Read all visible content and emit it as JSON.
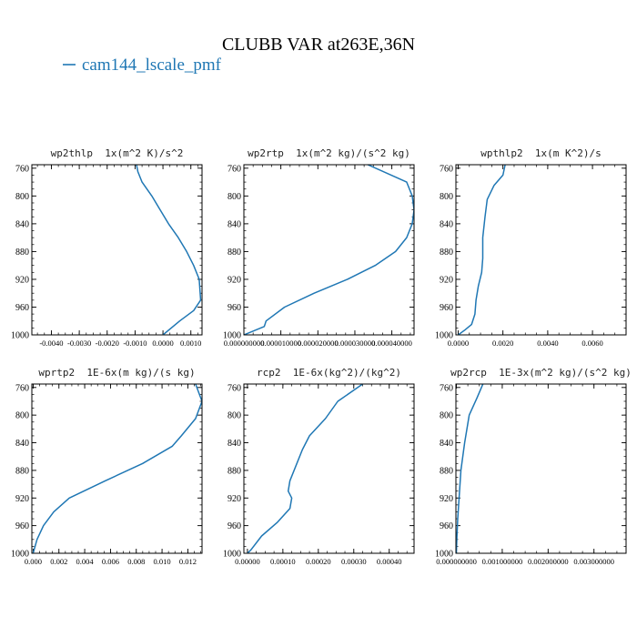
{
  "figure": {
    "title": "CLUBB VAR at263E,36N",
    "legend_label": "cam144_lscale_pmf",
    "line_color": "#1f77b4"
  },
  "chart_data": [
    {
      "type": "line",
      "title": "wp2thlp  1x(m^2 K)/s^2",
      "xlim": [
        -0.0047,
        0.0014
      ],
      "ylim": [
        1000,
        755
      ],
      "xticks": [
        -0.004,
        -0.003,
        -0.002,
        -0.001,
        0.0,
        0.001
      ],
      "xtick_labels": [
        "-0.0040",
        "-0.0030",
        "-0.0020",
        "-0.0010",
        "0.0000",
        "0.0010"
      ],
      "yticks": [
        760,
        800,
        840,
        880,
        920,
        960,
        1000
      ],
      "ytick_labels": [
        "760",
        "800",
        "840",
        "880",
        "920",
        "960",
        "1000"
      ],
      "series": [
        {
          "x": [
            -0.00095,
            -0.0009,
            -0.00075,
            -0.0004,
            -0.0001,
            0.0002,
            0.00055,
            0.00085,
            0.0011,
            0.0013,
            0.00135,
            0.0011,
            0.0006,
            0.0
          ],
          "y": [
            755,
            765,
            780,
            800,
            820,
            840,
            860,
            880,
            900,
            920,
            950,
            965,
            980,
            1000
          ]
        }
      ]
    },
    {
      "type": "line",
      "title": "wp2rtp  1x(m^2 kg)/(s^2 kg)",
      "xlim": [
        0.0,
        4.6e-05
      ],
      "ylim": [
        1000,
        755
      ],
      "xticks": [
        0.0,
        1e-05,
        2e-05,
        3e-05,
        4e-05
      ],
      "xtick_labels": [
        "0.000000000",
        "0.000010000",
        "0.000020000",
        "0.000030000",
        "0.000040000"
      ],
      "yticks": [
        760,
        800,
        840,
        880,
        920,
        960,
        1000
      ],
      "ytick_labels": [
        "760",
        "800",
        "840",
        "880",
        "920",
        "960",
        "1000"
      ],
      "series": [
        {
          "x": [
            3.35e-05,
            4.4e-05,
            4.55e-05,
            4.6e-05,
            4.55e-05,
            4.4e-05,
            4.1e-05,
            3.55e-05,
            2.8e-05,
            1.9e-05,
            1.1e-05,
            6e-06,
            5.5e-06,
            0.0
          ],
          "y": [
            755,
            780,
            800,
            820,
            840,
            860,
            880,
            900,
            920,
            940,
            960,
            980,
            988,
            1000
          ]
        }
      ]
    },
    {
      "type": "line",
      "title": "wpthlp2  1x(m K^2)/s",
      "xlim": [
        -0.0001,
        0.0075
      ],
      "ylim": [
        1000,
        755
      ],
      "xticks": [
        0.0,
        0.002,
        0.004,
        0.006
      ],
      "xtick_labels": [
        "0.0000",
        "0.0020",
        "0.0040",
        "0.0060"
      ],
      "yticks": [
        760,
        800,
        840,
        880,
        920,
        960,
        1000
      ],
      "ytick_labels": [
        "760",
        "800",
        "840",
        "880",
        "920",
        "960",
        "1000"
      ],
      "series": [
        {
          "x": [
            0.0021,
            0.002,
            0.0016,
            0.0013,
            0.0012,
            0.0011,
            0.0011,
            0.00105,
            0.0009,
            0.0008,
            0.00075,
            0.0006,
            0.0003,
            0.0
          ],
          "y": [
            755,
            770,
            785,
            805,
            830,
            860,
            890,
            910,
            930,
            950,
            970,
            985,
            993,
            1000
          ]
        }
      ]
    },
    {
      "type": "line",
      "title": "wprtp2  1E-6x(m kg)/(s kg)",
      "xlim": [
        -0.0001,
        0.0131
      ],
      "ylim": [
        1000,
        755
      ],
      "xticks": [
        0.0,
        0.002,
        0.004,
        0.006,
        0.008,
        0.01,
        0.012
      ],
      "xtick_labels": [
        "0.000",
        "0.002",
        "0.004",
        "0.006",
        "0.008",
        "0.010",
        "0.012"
      ],
      "yticks": [
        760,
        800,
        840,
        880,
        920,
        960,
        1000
      ],
      "ytick_labels": [
        "760",
        "800",
        "840",
        "880",
        "920",
        "960",
        "1000"
      ],
      "series": [
        {
          "x": [
            0.0126,
            0.0131,
            0.0126,
            0.0115,
            0.0108,
            0.0085,
            0.0056,
            0.0028,
            0.0016,
            0.0008,
            0.0003,
            0.0
          ],
          "y": [
            755,
            780,
            805,
            830,
            845,
            870,
            895,
            920,
            940,
            960,
            980,
            1000
          ]
        }
      ]
    },
    {
      "type": "line",
      "title": "rcp2  1E-6x(kg^2)/(kg^2)",
      "xlim": [
        -1e-05,
        0.00047
      ],
      "ylim": [
        1000,
        755
      ],
      "xticks": [
        0.0,
        0.0001,
        0.0002,
        0.0003,
        0.0004
      ],
      "xtick_labels": [
        "0.00000",
        "0.00010",
        "0.00020",
        "0.00030",
        "0.00040"
      ],
      "yticks": [
        760,
        800,
        840,
        880,
        920,
        960,
        1000
      ],
      "ytick_labels": [
        "760",
        "800",
        "840",
        "880",
        "920",
        "960",
        "1000"
      ],
      "series": [
        {
          "x": [
            0.000325,
            0.000255,
            0.00022,
            0.000175,
            0.000155,
            0.00012,
            0.000115,
            0.000125,
            0.00012,
            8.5e-05,
            4e-05,
            1e-05,
            0.0
          ],
          "y": [
            755,
            780,
            805,
            830,
            850,
            895,
            910,
            920,
            935,
            955,
            975,
            995,
            1000
          ]
        }
      ]
    },
    {
      "type": "line",
      "title": "wp2rcp  1E-3x(m^2 kg)/(s^2 kg)",
      "xlim": [
        -1e-05,
        0.0037
      ],
      "ylim": [
        1000,
        755
      ],
      "xticks": [
        0.0,
        0.001,
        0.002,
        0.003
      ],
      "xtick_labels": [
        "0.000000000",
        "0.001000000",
        "0.002000000",
        "0.003000000"
      ],
      "yticks": [
        760,
        800,
        840,
        880,
        920,
        960,
        1000
      ],
      "ytick_labels": [
        "760",
        "800",
        "840",
        "880",
        "920",
        "960",
        "1000"
      ],
      "series": [
        {
          "x": [
            0.00058,
            0.00045,
            0.00028,
            0.00018,
            0.0001,
            6e-05,
            3e-05,
            1e-05,
            0.0
          ],
          "y": [
            755,
            775,
            800,
            840,
            880,
            920,
            950,
            980,
            1000
          ]
        }
      ]
    }
  ]
}
